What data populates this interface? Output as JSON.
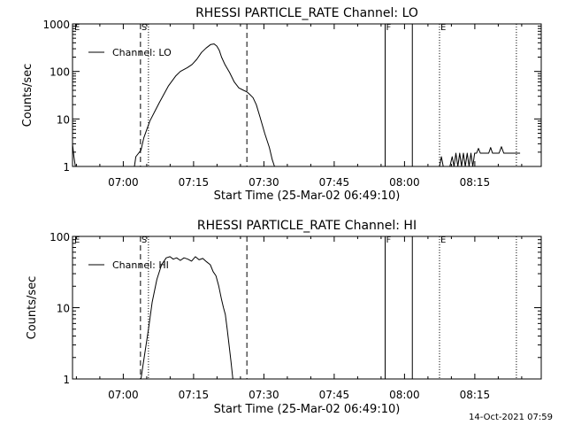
{
  "footer": {
    "date": "14-Oct-2021 07:59"
  },
  "chart_data": [
    {
      "type": "line",
      "title": "RHESSI PARTICLE_RATE Channel: LO",
      "xlabel": "Start Time (25-Mar-02 06:49:10)",
      "ylabel": "Counts/sec",
      "xlim_minutes": [
        0,
        100
      ],
      "xticks": [
        {
          "m": 10.83,
          "label": "07:00"
        },
        {
          "m": 25.83,
          "label": "07:15"
        },
        {
          "m": 40.83,
          "label": "07:30"
        },
        {
          "m": 55.83,
          "label": "07:45"
        },
        {
          "m": 70.83,
          "label": "08:00"
        },
        {
          "m": 85.83,
          "label": "08:15"
        }
      ],
      "yscale": "log",
      "ylim": [
        1,
        1000
      ],
      "yticks": [
        {
          "v": 1,
          "label": "1"
        },
        {
          "v": 10,
          "label": "10"
        },
        {
          "v": 100,
          "label": "100"
        },
        {
          "v": 1000,
          "label": "1000"
        }
      ],
      "legend": {
        "name": "Channel: LO",
        "position": "top-left"
      },
      "markers": [
        {
          "m": 0.2,
          "label": "E",
          "style": "none"
        },
        {
          "m": 14.5,
          "label": "S",
          "style": "dashed"
        },
        {
          "m": 16.2,
          "label": "",
          "style": "dotted"
        },
        {
          "m": 37.2,
          "label": "",
          "style": "dashed"
        },
        {
          "m": 66.7,
          "label": "F",
          "style": "solid"
        },
        {
          "m": 72.5,
          "label": "",
          "style": "solid"
        },
        {
          "m": 78.3,
          "label": "E",
          "style": "dotted"
        },
        {
          "m": 94.7,
          "label": "",
          "style": "dotted"
        }
      ],
      "series": [
        {
          "name": "Channel: LO",
          "x": [
            0,
            0.3,
            0.6,
            13.2,
            13.5,
            14.6,
            15.2,
            16.5,
            18.5,
            20.5,
            22.0,
            23.0,
            24.5,
            25.5,
            26.5,
            27.5,
            28.5,
            29.5,
            30.2,
            30.8,
            31.3,
            31.8,
            32.5,
            33.5,
            34.5,
            35.5,
            36.5,
            37.2,
            37.8,
            38.5,
            39.2,
            40.0,
            41.0,
            42.0,
            42.6,
            43.1
          ],
          "y": [
            3,
            1.6,
            1,
            1,
            1.6,
            2.2,
            4,
            9,
            22,
            50,
            80,
            100,
            120,
            140,
            180,
            250,
            310,
            370,
            380,
            340,
            280,
            200,
            140,
            95,
            60,
            45,
            40,
            37,
            33,
            28,
            20,
            11,
            5,
            2.5,
            1.4,
            1
          ]
        },
        {
          "name": "Channel: LO",
          "x": [
            78.3,
            78.7,
            79.1,
            80.5,
            81.0,
            81.4,
            81.8,
            82.2,
            82.6,
            83.0,
            83.4,
            83.8,
            84.2,
            84.6,
            85.0,
            85.4,
            85.8,
            86.2,
            86.6,
            87.0,
            88.0,
            88.4,
            88.8,
            89.2,
            89.6,
            90.0,
            90.5,
            91.0,
            91.5,
            92.0,
            95.5
          ],
          "y": [
            1,
            1.6,
            1,
            1,
            1.6,
            1,
            1.9,
            1,
            1.9,
            1,
            1.9,
            1,
            1.9,
            1,
            1.9,
            1,
            1.9,
            1.9,
            2.4,
            1.9,
            1.9,
            1.9,
            1.9,
            2.5,
            1.9,
            1.9,
            1.9,
            1.9,
            2.6,
            1.9,
            1.9
          ]
        }
      ]
    },
    {
      "type": "line",
      "title": "RHESSI PARTICLE_RATE Channel: HI",
      "xlabel": "Start Time (25-Mar-02 06:49:10)",
      "ylabel": "Counts/sec",
      "xlim_minutes": [
        0,
        100
      ],
      "xticks": [
        {
          "m": 10.83,
          "label": "07:00"
        },
        {
          "m": 25.83,
          "label": "07:15"
        },
        {
          "m": 40.83,
          "label": "07:30"
        },
        {
          "m": 55.83,
          "label": "07:45"
        },
        {
          "m": 70.83,
          "label": "08:00"
        },
        {
          "m": 85.83,
          "label": "08:15"
        }
      ],
      "yscale": "log",
      "ylim": [
        1,
        100
      ],
      "yticks": [
        {
          "v": 1,
          "label": "1"
        },
        {
          "v": 10,
          "label": "10"
        },
        {
          "v": 100,
          "label": "100"
        }
      ],
      "legend": {
        "name": "Channel: HI",
        "position": "top-left"
      },
      "markers": [
        {
          "m": 0.2,
          "label": "E",
          "style": "none"
        },
        {
          "m": 14.5,
          "label": "S",
          "style": "dashed"
        },
        {
          "m": 16.2,
          "label": "",
          "style": "dotted"
        },
        {
          "m": 37.2,
          "label": "",
          "style": "dashed"
        },
        {
          "m": 66.7,
          "label": "F",
          "style": "solid"
        },
        {
          "m": 72.5,
          "label": "",
          "style": "solid"
        },
        {
          "m": 78.3,
          "label": "E",
          "style": "dotted"
        },
        {
          "m": 94.7,
          "label": "",
          "style": "dotted"
        }
      ],
      "series": [
        {
          "name": "Channel: HI",
          "x": [
            14.6,
            15.0,
            15.5,
            16.2,
            17.0,
            18.0,
            19.0,
            20.0,
            20.8,
            21.5,
            22.2,
            23.0,
            23.8,
            24.6,
            25.4,
            26.2,
            27.0,
            27.8,
            28.6,
            29.4,
            30.0,
            30.6,
            31.2,
            31.8,
            32.2,
            32.6,
            33.0,
            33.4,
            33.8,
            34.2
          ],
          "y": [
            1,
            1.5,
            2.5,
            5,
            12,
            25,
            40,
            50,
            52,
            48,
            50,
            46,
            50,
            48,
            45,
            52,
            47,
            49,
            44,
            40,
            32,
            28,
            20,
            13,
            10,
            8,
            5,
            3,
            1.8,
            1
          ]
        }
      ]
    }
  ]
}
